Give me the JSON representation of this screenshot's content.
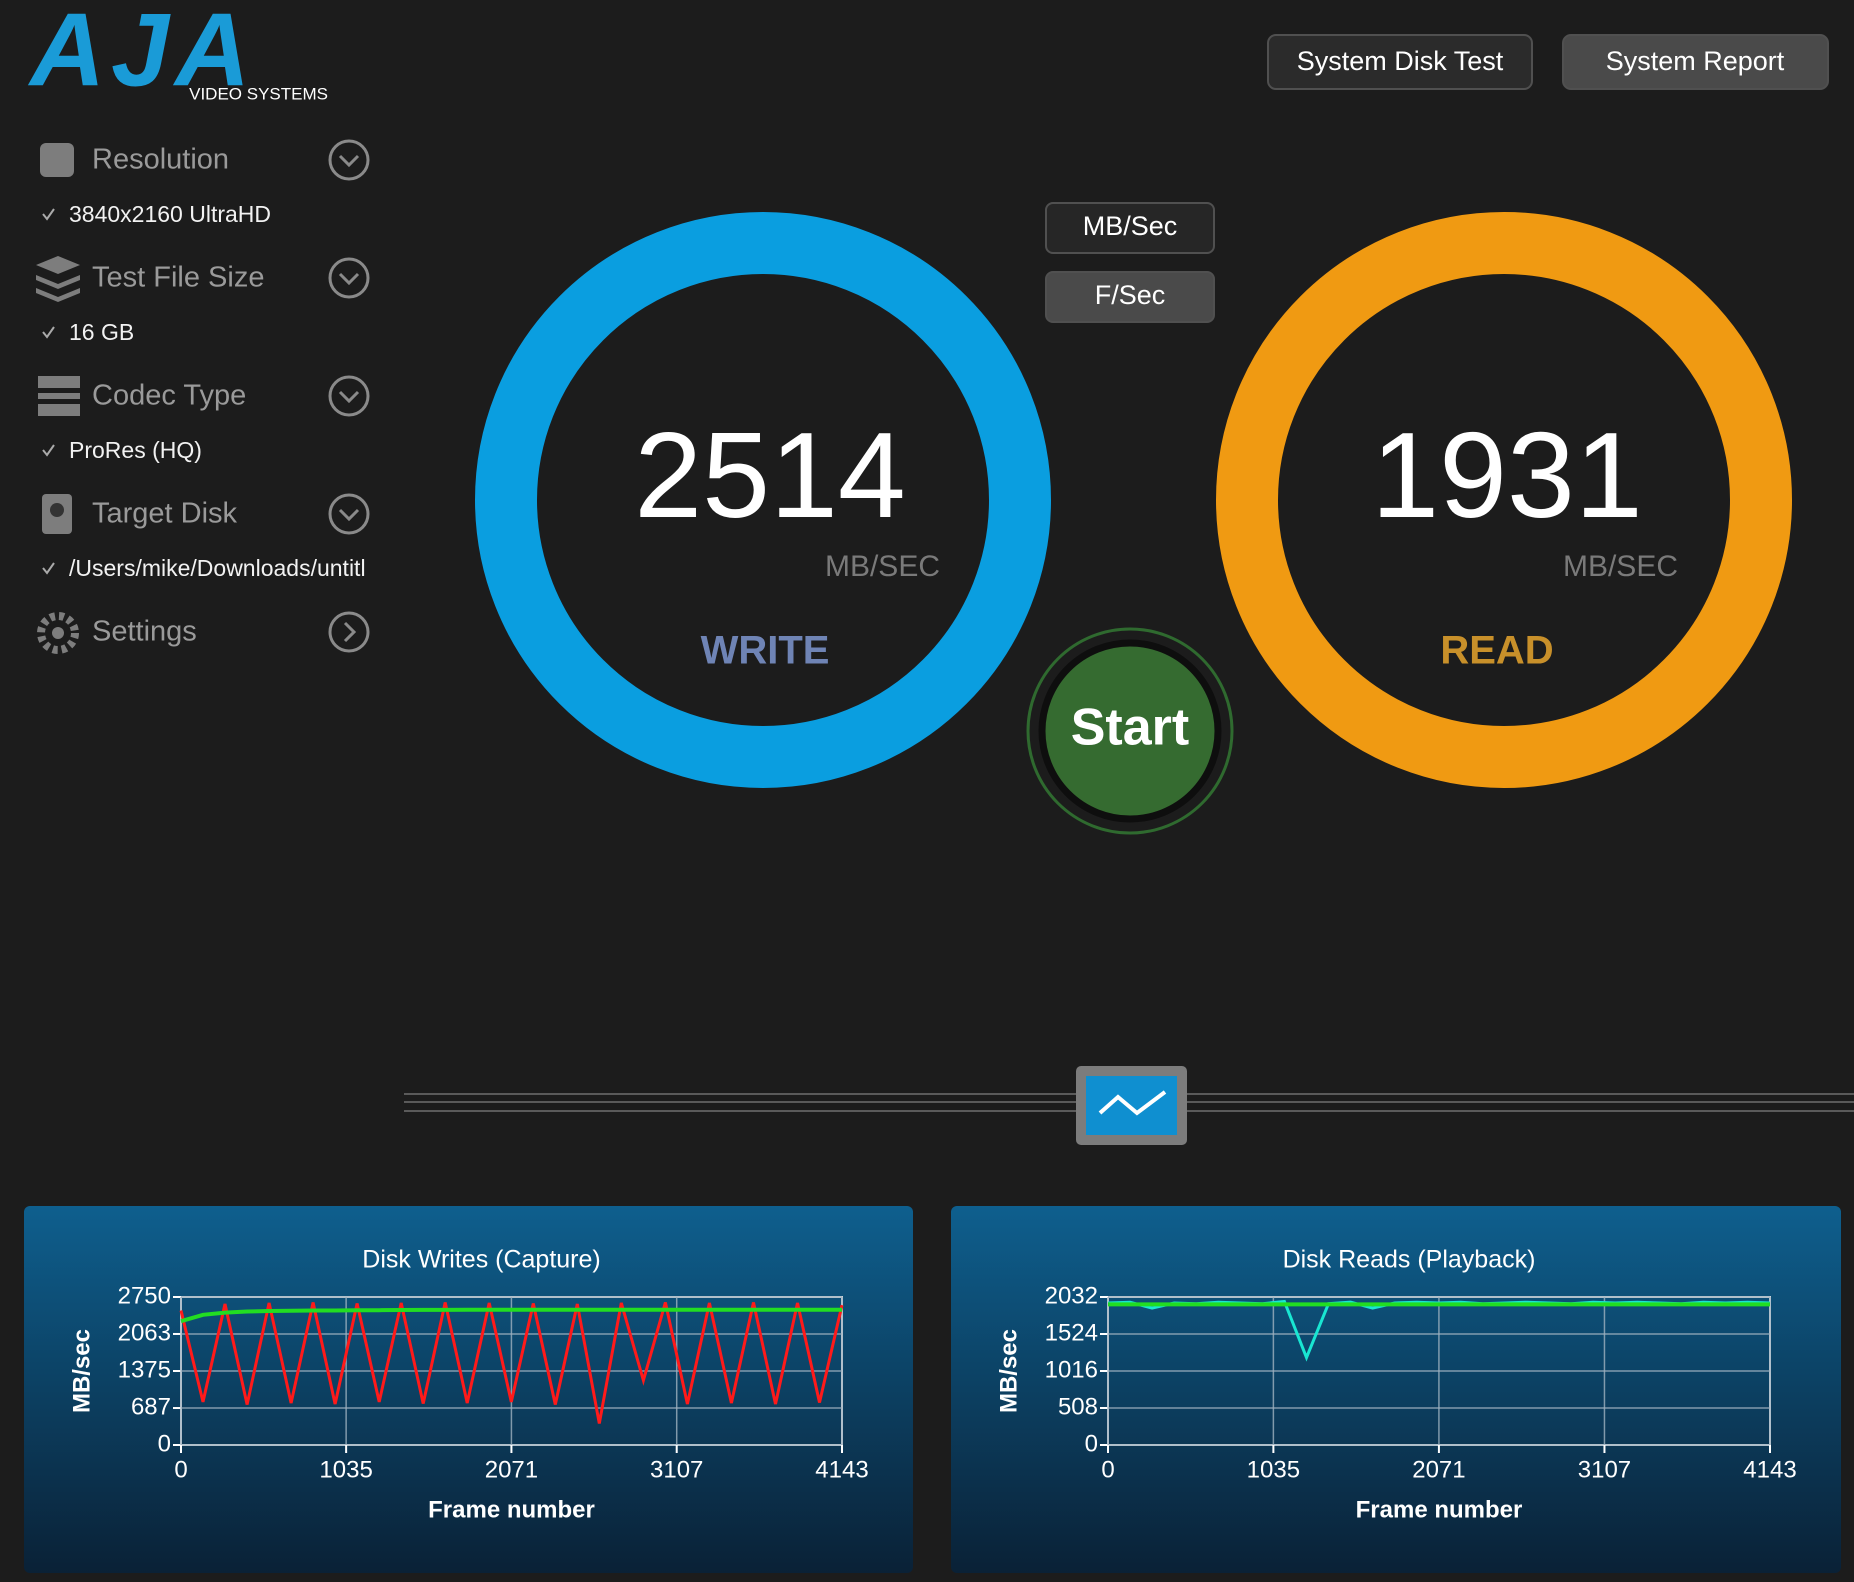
{
  "header": {
    "logo": "AJA",
    "logo_sub": "VIDEO SYSTEMS",
    "buttons": [
      "System Disk Test",
      "System Report"
    ]
  },
  "sidebar": {
    "items": [
      {
        "label": "Resolution",
        "value": "3840x2160 UltraHD"
      },
      {
        "label": "Test File Size",
        "value": "16 GB"
      },
      {
        "label": "Codec Type",
        "value": "ProRes (HQ)"
      },
      {
        "label": "Target Disk",
        "value": "/Users/mike/Downloads/untitl"
      },
      {
        "label": "Settings"
      }
    ]
  },
  "units": {
    "options": [
      "MB/Sec",
      "F/Sec"
    ]
  },
  "gauges": [
    {
      "value": 2514,
      "unit": "MB/SEC",
      "label": "WRITE"
    },
    {
      "value": 1931,
      "unit": "MB/SEC",
      "label": "READ"
    }
  ],
  "start": "Start",
  "chart_data": [
    {
      "type": "line",
      "title": "Disk Writes (Capture)",
      "x_label": "Frame number",
      "y_label": "MB/sec",
      "x": [
        0,
        138,
        276,
        414,
        552,
        690,
        828,
        966,
        1104,
        1242,
        1380,
        1518,
        1656,
        1794,
        1932,
        2070,
        2208,
        2346,
        2484,
        2622,
        2760,
        2898,
        3036,
        3174,
        3312,
        3450,
        3588,
        3726,
        3864,
        4002,
        4143
      ],
      "series": [
        {
          "color": "#ff1a1a",
          "values": [
            2500,
            800,
            2620,
            750,
            2640,
            780,
            2650,
            760,
            2630,
            800,
            2640,
            770,
            2650,
            780,
            2640,
            800,
            2630,
            750,
            2620,
            400,
            2640,
            1200,
            2650,
            760,
            2640,
            780,
            2650,
            760,
            2640,
            790,
            2600
          ]
        },
        {
          "color": "#22dd22",
          "values": [
            2300,
            2420,
            2460,
            2480,
            2490,
            2495,
            2500,
            2500,
            2505,
            2505,
            2508,
            2510,
            2510,
            2512,
            2512,
            2513,
            2513,
            2514,
            2514,
            2514,
            2514,
            2514,
            2514,
            2514,
            2514,
            2514,
            2514,
            2514,
            2514,
            2514,
            2514
          ]
        }
      ],
      "xlim": [
        0,
        4143
      ],
      "ylim": [
        0,
        2750
      ],
      "xticks": [
        0,
        1035,
        2071,
        3107,
        4143
      ],
      "yticks": [
        0,
        687,
        1375,
        2063,
        2750
      ],
      "grid": true
    },
    {
      "type": "line",
      "title": "Disk Reads (Playback)",
      "x_label": "Frame number",
      "y_label": "MB/sec",
      "x": [
        0,
        138,
        276,
        414,
        552,
        690,
        828,
        966,
        1104,
        1242,
        1380,
        1518,
        1656,
        1794,
        1932,
        2070,
        2208,
        2346,
        2484,
        2622,
        2760,
        2898,
        3036,
        3174,
        3312,
        3450,
        3588,
        3726,
        3864,
        4002,
        4143
      ],
      "series": [
        {
          "color": "#19e6d2",
          "values": [
            1950,
            1960,
            1880,
            1950,
            1940,
            1960,
            1950,
            1940,
            1970,
            1200,
            1940,
            1960,
            1880,
            1950,
            1960,
            1950,
            1960,
            1940,
            1950,
            1960,
            1950,
            1940,
            1960,
            1950,
            1960,
            1950,
            1940,
            1960,
            1950,
            1960,
            1950
          ]
        },
        {
          "color": "#22dd22",
          "values": [
            1931,
            1931,
            1931,
            1931,
            1931,
            1931,
            1931,
            1931,
            1931,
            1931,
            1931,
            1931,
            1931,
            1931,
            1931,
            1931,
            1931,
            1931,
            1931,
            1931,
            1931,
            1931,
            1931,
            1931,
            1931,
            1931,
            1931,
            1931,
            1931,
            1931,
            1931
          ]
        }
      ],
      "xlim": [
        0,
        4143
      ],
      "ylim": [
        0,
        2032
      ],
      "xticks": [
        0,
        1035,
        2071,
        3107,
        4143
      ],
      "yticks": [
        0,
        508,
        1016,
        1524,
        2032
      ],
      "grid": true
    }
  ]
}
